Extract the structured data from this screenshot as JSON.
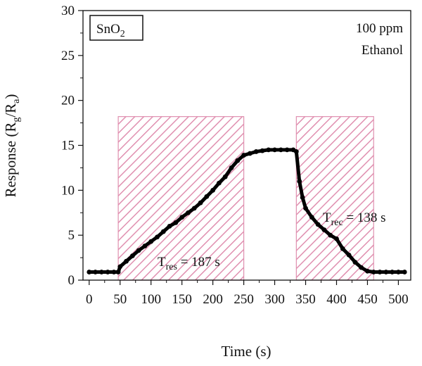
{
  "chart_data": {
    "type": "line",
    "xlabel": "Time (s)",
    "ylabel": {
      "main": "Response (R",
      "sub1": "g",
      "mid": "/R",
      "sub2": "a",
      "end": ")"
    },
    "xlim": [
      -10,
      520
    ],
    "ylim": [
      0,
      30
    ],
    "xticks": [
      0,
      50,
      100,
      150,
      200,
      250,
      300,
      350,
      400,
      450,
      500
    ],
    "yticks": [
      0,
      5,
      10,
      15,
      20,
      25,
      30
    ],
    "grid": false,
    "legend": null,
    "material_box": {
      "main": "SnO",
      "sub": "2"
    },
    "conditions": [
      "100 ppm",
      "Ethanol"
    ],
    "response_region": {
      "x_start": 47,
      "x_end": 250,
      "y_top": 18.2,
      "label_main": "T",
      "label_sub": "res",
      "label_rest": " = 187 s"
    },
    "recovery_region": {
      "x_start": 335,
      "x_end": 460,
      "y_top": 18.2,
      "label_main": "T",
      "label_sub": "rec",
      "label_rest": " = 138 s"
    },
    "hatch_color": "#e090b0",
    "series": [
      {
        "color": "#000000",
        "x": [
          0,
          10,
          20,
          30,
          40,
          47,
          50,
          60,
          70,
          80,
          90,
          100,
          110,
          120,
          130,
          140,
          150,
          160,
          170,
          180,
          190,
          200,
          210,
          220,
          230,
          240,
          250,
          260,
          270,
          280,
          290,
          300,
          310,
          320,
          330,
          335,
          340,
          345,
          350,
          360,
          370,
          380,
          390,
          400,
          410,
          420,
          430,
          440,
          450,
          460,
          470,
          480,
          490,
          500,
          510
        ],
        "y": [
          0.9,
          0.9,
          0.9,
          0.9,
          0.9,
          0.9,
          1.5,
          2.1,
          2.7,
          3.3,
          3.8,
          4.3,
          4.8,
          5.4,
          6.0,
          6.4,
          7.0,
          7.5,
          8.0,
          8.6,
          9.3,
          10.0,
          10.8,
          11.5,
          12.5,
          13.3,
          13.9,
          14.1,
          14.3,
          14.4,
          14.5,
          14.5,
          14.5,
          14.5,
          14.5,
          14.3,
          11.0,
          9.2,
          8.0,
          7.0,
          6.2,
          5.6,
          5.0,
          4.6,
          3.5,
          2.8,
          2.0,
          1.4,
          1.0,
          0.9,
          0.9,
          0.9,
          0.9,
          0.9,
          0.9
        ]
      }
    ]
  }
}
